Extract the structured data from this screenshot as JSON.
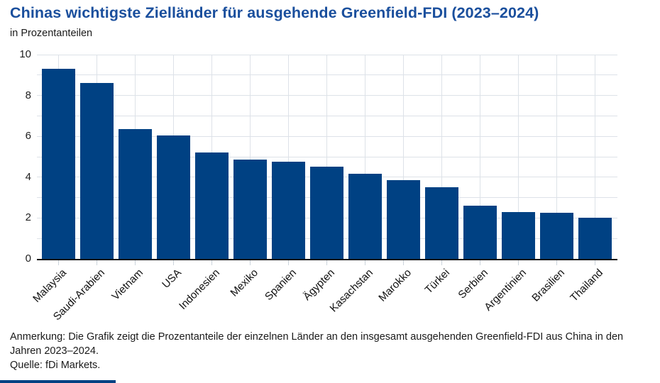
{
  "header": {
    "title": "Chinas wichtigste Zielländer für ausgehende Greenfield-FDI (2023–2024)",
    "subtitle": "in Prozentanteilen"
  },
  "chart_data": {
    "type": "bar",
    "title": "Chinas wichtigste Zielländer für ausgehende Greenfield-FDI (2023–2024)",
    "subtitle": "in Prozentanteilen",
    "categories": [
      "Malaysia",
      "Saudi-Arabien",
      "Vietnam",
      "USA",
      "Indonesien",
      "Mexiko",
      "Spanien",
      "Ägypten",
      "Kasachstan",
      "Marokko",
      "Türkei",
      "Serbien",
      "Argentinien",
      "Brasilien",
      "Thailand"
    ],
    "values": [
      9.3,
      8.6,
      6.35,
      6.05,
      5.2,
      4.85,
      4.75,
      4.5,
      4.15,
      3.85,
      3.5,
      2.6,
      2.3,
      2.25,
      2.0
    ],
    "xlabel": "",
    "ylabel": "",
    "ylim": [
      0,
      10
    ],
    "yticks": [
      0,
      2,
      4,
      6,
      8,
      10
    ],
    "grid": "on",
    "legend": "none",
    "bar_color": "#004183"
  },
  "colors": {
    "bar": "#004183",
    "title": "#1a4f9d",
    "grid": "#dde2e8",
    "axis": "#111111",
    "accent_bar": "#004183"
  },
  "footer": {
    "note": "Anmerkung: Die Grafik zeigt die Prozentanteile der einzelnen Länder an den insgesamt ausgehenden Greenfield-FDI aus China in den Jahren 2023–2024.",
    "source": "Quelle: fDi Markets."
  }
}
